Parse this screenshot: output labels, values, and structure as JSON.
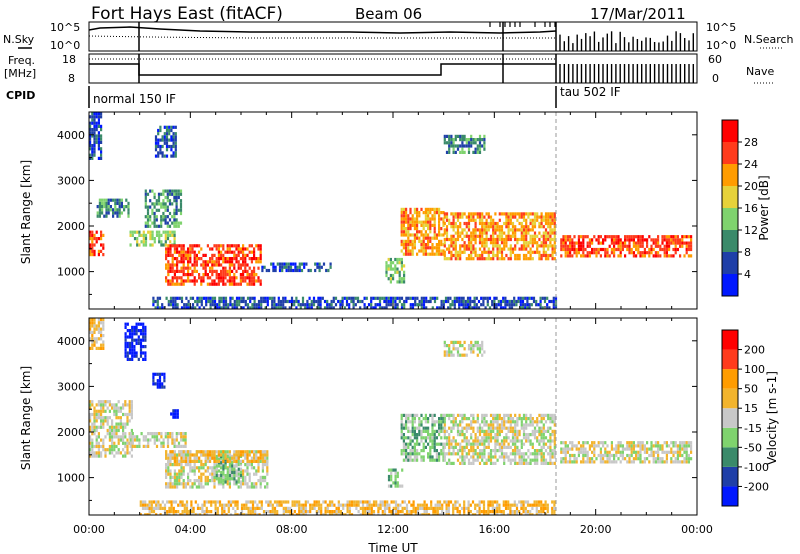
{
  "header": {
    "title": "Fort Hays East (fitACF)",
    "beam": "Beam 06",
    "date": "17/Mar/2011"
  },
  "top_panels": {
    "nsky_label": "N.Sky",
    "nsearch_label": "N.Search",
    "nsky_ticks": [
      "10^5",
      "10^0"
    ],
    "freq_label_1": "Freq.",
    "freq_label_2": "[MHz]",
    "freq_ticks": [
      "18",
      "8"
    ],
    "nave_label": "Nave",
    "nave_ticks": [
      "60",
      "0"
    ],
    "cpid_label": "CPID",
    "cpid_modes": [
      {
        "label": "normal 150 IF",
        "start_hour": 0
      },
      {
        "label": "tau 502 IF",
        "start_hour": 18.6
      }
    ]
  },
  "chart_data": [
    {
      "type": "heatmap",
      "name": "power",
      "ylabel": "Slant Range [km]",
      "xlim": [
        0,
        24
      ],
      "ylim": [
        180,
        4500
      ],
      "yticks": [
        1000,
        2000,
        3000,
        4000
      ],
      "colorbar": {
        "label": "Power [dB]",
        "ticks": [
          "4",
          "8",
          "12",
          "16",
          "20",
          "24",
          "28"
        ],
        "colors": [
          "#0018ff",
          "#1f3fa8",
          "#3a8a6a",
          "#7fd36e",
          "#e6d23a",
          "#ff9c00",
          "#ff3b1c",
          "#ff0000"
        ]
      },
      "regions": [
        {
          "t0": 0.0,
          "t1": 0.5,
          "r0": 3500,
          "r1": 4500,
          "level": 1
        },
        {
          "t0": 0.0,
          "t1": 0.6,
          "r0": 1400,
          "r1": 1900,
          "level": 6
        },
        {
          "t0": 0.3,
          "t1": 1.6,
          "r0": 2200,
          "r1": 2600,
          "level": 2
        },
        {
          "t0": 1.6,
          "t1": 3.4,
          "r0": 1600,
          "r1": 1900,
          "level": 3
        },
        {
          "t0": 2.2,
          "t1": 3.6,
          "r0": 2000,
          "r1": 2800,
          "level": 2
        },
        {
          "t0": 2.6,
          "t1": 3.4,
          "r0": 3500,
          "r1": 4200,
          "level": 1
        },
        {
          "t0": 3.0,
          "t1": 6.8,
          "r0": 700,
          "r1": 1600,
          "level": 6
        },
        {
          "t0": 6.8,
          "t1": 9.5,
          "r0": 1000,
          "r1": 1200,
          "level": 1
        },
        {
          "t0": 11.7,
          "t1": 12.4,
          "r0": 800,
          "r1": 1300,
          "level": 3
        },
        {
          "t0": 12.3,
          "t1": 14.0,
          "r0": 1400,
          "r1": 2400,
          "level": 5
        },
        {
          "t0": 14.0,
          "t1": 15.6,
          "r0": 3600,
          "r1": 4000,
          "level": 2
        },
        {
          "t0": 14.0,
          "t1": 18.4,
          "r0": 1300,
          "r1": 2300,
          "level": 5
        },
        {
          "t0": 18.6,
          "t1": 23.8,
          "r0": 1350,
          "r1": 1800,
          "level": 6
        },
        {
          "t0": 2.5,
          "t1": 18.4,
          "r0": 200,
          "r1": 450,
          "level": 1
        }
      ]
    },
    {
      "type": "heatmap",
      "name": "velocity",
      "xlabel": "Time UT",
      "ylabel": "Slant Range [km]",
      "xlim": [
        0,
        24
      ],
      "ylim": [
        180,
        4500
      ],
      "xticks": [
        "00:00",
        "04:00",
        "08:00",
        "12:00",
        "16:00",
        "20:00",
        "00:00"
      ],
      "yticks": [
        1000,
        2000,
        3000,
        4000
      ],
      "colorbar": {
        "label": "Velocity [m s-1]",
        "ticks": [
          "200",
          "100",
          "50",
          "15",
          "-15",
          "-50",
          "-100",
          "-200"
        ],
        "colors": [
          "#0018ff",
          "#1f3fa8",
          "#3a8a6a",
          "#7fd36e",
          "#c8c8c8",
          "#f2b42d",
          "#ff9c00",
          "#ff3b1c",
          "#ff0000"
        ]
      },
      "regions": [
        {
          "t0": 0.0,
          "t1": 0.6,
          "r0": 3800,
          "r1": 4500,
          "level": 5
        },
        {
          "t0": 0.0,
          "t1": 1.7,
          "r0": 1500,
          "r1": 2700,
          "level": 4
        },
        {
          "t0": 1.4,
          "t1": 2.2,
          "r0": 3600,
          "r1": 4400,
          "level": 0
        },
        {
          "t0": 2.5,
          "t1": 3.0,
          "r0": 3000,
          "r1": 3300,
          "level": 0
        },
        {
          "t0": 3.2,
          "t1": 3.5,
          "r0": 2300,
          "r1": 2500,
          "level": 0
        },
        {
          "t0": 1.6,
          "t1": 3.8,
          "r0": 1700,
          "r1": 2000,
          "level": 4
        },
        {
          "t0": 3.0,
          "t1": 7.0,
          "r0": 800,
          "r1": 1600,
          "level": 4
        },
        {
          "t0": 5.0,
          "t1": 6.0,
          "r0": 900,
          "r1": 1500,
          "level": 3
        },
        {
          "t0": 3.0,
          "t1": 7.0,
          "r0": 1350,
          "r1": 1600,
          "level": 5
        },
        {
          "t0": 2.0,
          "t1": 18.4,
          "r0": 200,
          "r1": 500,
          "level": 5
        },
        {
          "t0": 11.8,
          "t1": 12.4,
          "r0": 800,
          "r1": 1200,
          "level": 3
        },
        {
          "t0": 12.3,
          "t1": 14.0,
          "r0": 1400,
          "r1": 2400,
          "level": 3
        },
        {
          "t0": 14.0,
          "t1": 15.6,
          "r0": 3700,
          "r1": 4000,
          "level": 4
        },
        {
          "t0": 14.0,
          "t1": 18.4,
          "r0": 1300,
          "r1": 2400,
          "level": 4
        },
        {
          "t0": 18.6,
          "t1": 23.8,
          "r0": 1350,
          "r1": 1800,
          "level": 4
        }
      ]
    }
  ]
}
